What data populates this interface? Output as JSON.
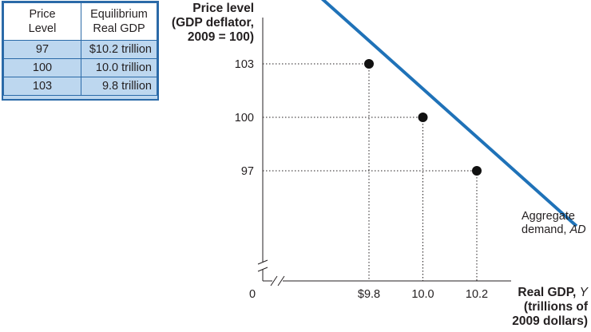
{
  "table": {
    "headers": {
      "price": [
        "Price",
        "Level"
      ],
      "gdp": [
        "Equilibrium",
        "Real GDP"
      ]
    },
    "rows": [
      {
        "price": "97",
        "gdp": "$10.2 trillion"
      },
      {
        "price": "100",
        "gdp": "10.0 trillion"
      },
      {
        "price": "103",
        "gdp": "9.8 trillion"
      }
    ]
  },
  "chart_data": {
    "type": "line",
    "ylabel_lines": [
      "Price level",
      "(GDP deflator,",
      "2009 = 100)"
    ],
    "xlabel": {
      "bold": "Real GDP, ",
      "italic": "Y",
      "lines": [
        "(trillions of",
        "2009 dollars)"
      ]
    },
    "origin_label": "0",
    "x_ticks": [
      {
        "value": 9.8,
        "label": "$9.8"
      },
      {
        "value": 10.0,
        "label": "10.0"
      },
      {
        "value": 10.2,
        "label": "10.2"
      }
    ],
    "y_ticks": [
      {
        "value": 97,
        "label": "97"
      },
      {
        "value": 100,
        "label": "100"
      },
      {
        "value": 103,
        "label": "103"
      }
    ],
    "series": [
      {
        "name": "Aggregate demand, AD",
        "label_lines": [
          "Aggregate",
          "demand, "
        ],
        "label_italic": "AD",
        "color": "#1f72b8",
        "x": [
          9.6,
          10.57
        ],
        "y": [
          107.0,
          93.9
        ]
      }
    ],
    "points": [
      {
        "x": 9.8,
        "y": 103
      },
      {
        "x": 10.0,
        "y": 100
      },
      {
        "x": 10.2,
        "y": 97
      }
    ],
    "axis_break": true,
    "grid": false
  },
  "colors": {
    "curve": "#1f72b8",
    "table_border": "#2b6aa8",
    "table_fill": "#bdd7ef",
    "text": "#231f20"
  }
}
